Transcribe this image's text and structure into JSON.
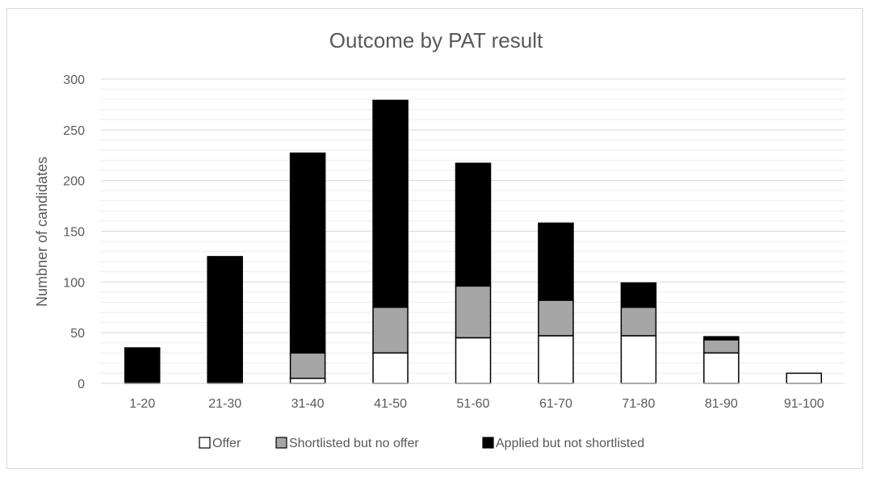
{
  "chart_data": {
    "type": "bar",
    "stacked": true,
    "title": "Outcome by PAT result",
    "xlabel": "",
    "ylabel": "Numbner of candidates",
    "ylim": [
      0,
      300
    ],
    "yticks": [
      0,
      50,
      100,
      150,
      200,
      250,
      300
    ],
    "minor_grid_step": 10,
    "grid": true,
    "legend_position": "bottom",
    "categories": [
      "1-20",
      "21-30",
      "31-40",
      "41-50",
      "51-60",
      "61-70",
      "71-80",
      "81-90",
      "91-100"
    ],
    "series": [
      {
        "name": "Offer",
        "color": "#ffffff",
        "values": [
          0,
          0,
          5,
          30,
          45,
          47,
          47,
          30,
          10
        ]
      },
      {
        "name": "Shortlisted but no offer",
        "color": "#a6a6a6",
        "values": [
          0,
          0,
          25,
          45,
          51,
          35,
          28,
          13,
          0
        ]
      },
      {
        "name": "Applied but not shortlisted",
        "color": "#000000",
        "values": [
          35,
          125,
          197,
          204,
          121,
          76,
          24,
          3,
          0
        ]
      }
    ]
  }
}
